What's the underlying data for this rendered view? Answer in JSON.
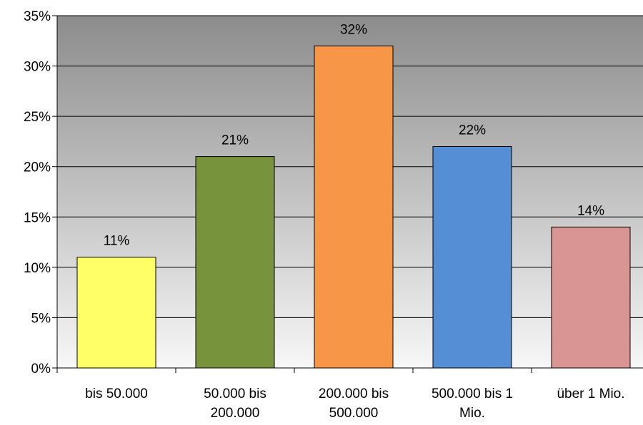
{
  "chart_data": {
    "type": "bar",
    "title": "",
    "xlabel": "",
    "ylabel": "",
    "ylim": [
      0,
      35
    ],
    "y_ticks": [
      0,
      5,
      10,
      15,
      20,
      25,
      30,
      35
    ],
    "y_tick_format": "percent",
    "grid": true,
    "legend": "none",
    "categories": [
      [
        "bis 50.000"
      ],
      [
        "50.000 bis",
        "200.000"
      ],
      [
        "200.000 bis",
        "500.000"
      ],
      [
        "500.000 bis 1",
        "Mio."
      ],
      [
        "über 1 Mio."
      ]
    ],
    "values": [
      11,
      21,
      32,
      22,
      14
    ],
    "data_labels": [
      "11%",
      "21%",
      "32%",
      "22%",
      "14%"
    ],
    "colors": [
      "#ffff66",
      "#77933c",
      "#f79646",
      "#558ed5",
      "#d99594"
    ]
  }
}
